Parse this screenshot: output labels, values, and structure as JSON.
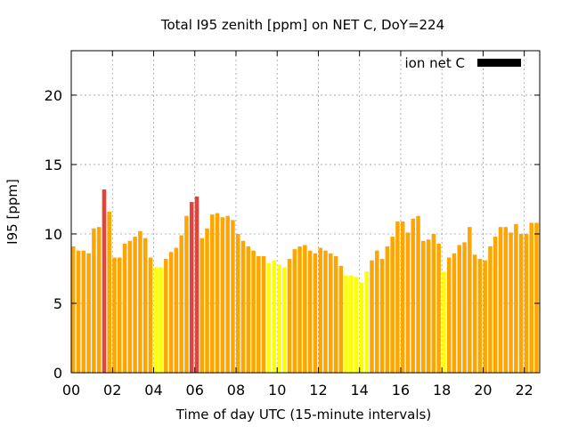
{
  "chart_data": {
    "type": "bar",
    "title": "Total I95 zenith [ppm] on NET C, DoY=224",
    "xlabel": "Time of day UTC (15-minute intervals)",
    "ylabel": "I95 [ppm]",
    "ylim": [
      0,
      23.2
    ],
    "yticks": [
      0,
      5,
      10,
      15,
      20
    ],
    "xlim_hours": [
      0,
      22.75
    ],
    "xtick_labels": [
      "00",
      "02",
      "04",
      "06",
      "08",
      "10",
      "12",
      "14",
      "16",
      "18",
      "20",
      "22"
    ],
    "grid": true,
    "legend": {
      "placement": "top-right",
      "label": "ion net C",
      "color": "#000000"
    },
    "colors": {
      "orange": "#ffa500",
      "red": "#e8413a",
      "yellow": "#ffff00"
    },
    "bin_minutes": 15,
    "values": [
      9.1,
      8.8,
      8.8,
      8.6,
      10.4,
      10.5,
      13.2,
      11.6,
      8.3,
      8.3,
      9.3,
      9.5,
      9.8,
      10.2,
      9.7,
      8.3,
      7.6,
      7.6,
      8.2,
      8.7,
      9.0,
      9.9,
      11.3,
      12.3,
      12.7,
      9.7,
      10.4,
      11.4,
      11.5,
      11.2,
      11.3,
      11.0,
      10.0,
      9.5,
      9.1,
      8.8,
      8.4,
      8.4,
      7.9,
      8.1,
      7.8,
      7.6,
      8.2,
      8.9,
      9.1,
      9.2,
      8.8,
      8.6,
      9.0,
      8.8,
      8.6,
      8.4,
      7.7,
      7.0,
      7.0,
      6.9,
      6.5,
      7.3,
      8.1,
      8.8,
      8.2,
      9.1,
      9.8,
      10.9,
      10.9,
      10.1,
      11.1,
      11.3,
      9.5,
      9.6,
      10.0,
      9.3,
      7.3,
      8.3,
      8.6,
      9.2,
      9.4,
      10.5,
      8.5,
      8.2,
      8.1,
      9.1,
      9.8,
      10.5,
      10.5,
      10.1,
      10.7,
      10.0,
      10.0,
      10.8,
      10.8,
      9.9
    ],
    "bar_colors": [
      "orange",
      "orange",
      "orange",
      "orange",
      "orange",
      "orange",
      "red",
      "orange",
      "orange",
      "orange",
      "orange",
      "orange",
      "orange",
      "orange",
      "orange",
      "orange",
      "yellow",
      "yellow",
      "orange",
      "orange",
      "orange",
      "orange",
      "orange",
      "red",
      "red",
      "orange",
      "orange",
      "orange",
      "orange",
      "orange",
      "orange",
      "orange",
      "orange",
      "orange",
      "orange",
      "orange",
      "orange",
      "orange",
      "yellow",
      "yellow",
      "yellow",
      "yellow",
      "orange",
      "orange",
      "orange",
      "orange",
      "orange",
      "orange",
      "orange",
      "orange",
      "orange",
      "orange",
      "orange",
      "yellow",
      "yellow",
      "yellow",
      "yellow",
      "yellow",
      "orange",
      "orange",
      "orange",
      "orange",
      "orange",
      "orange",
      "orange",
      "orange",
      "orange",
      "orange",
      "orange",
      "orange",
      "orange",
      "orange",
      "yellow",
      "orange",
      "orange",
      "orange",
      "orange",
      "orange",
      "orange",
      "orange",
      "orange",
      "orange",
      "orange",
      "orange",
      "orange",
      "orange",
      "orange",
      "orange",
      "orange",
      "orange",
      "orange",
      "orange"
    ]
  }
}
